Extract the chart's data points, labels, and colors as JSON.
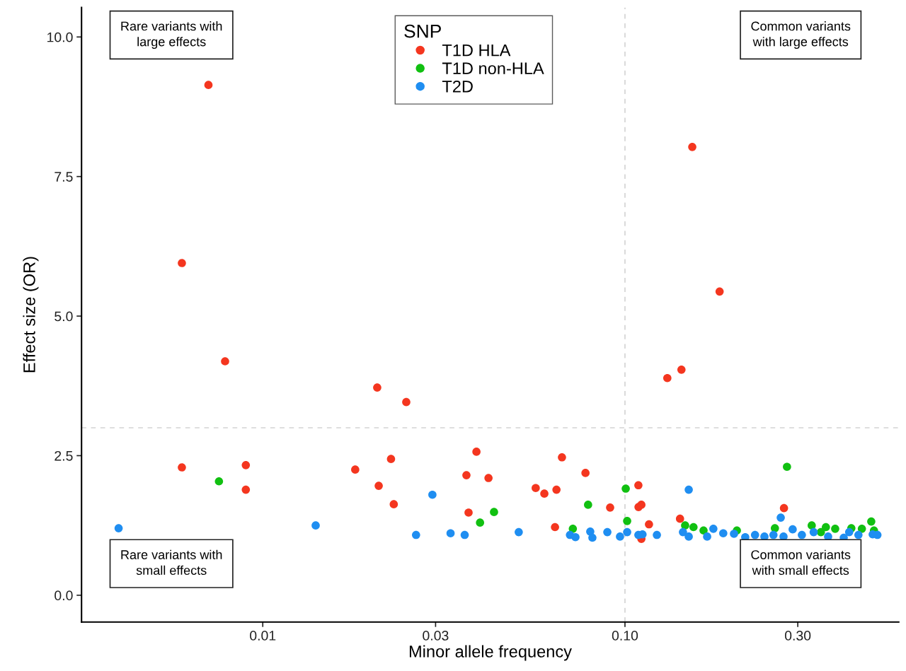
{
  "chart_data": {
    "type": "scatter",
    "xlabel": "Minor allele frequency",
    "ylabel": "Effect size (OR)",
    "legend_title": "SNP",
    "legend": "top",
    "marker": "circle",
    "grid": false,
    "log": "x",
    "xlim": [
      0.00316,
      0.57
    ],
    "xticks": [
      0.01,
      0.03,
      {
        "value": 0.1,
        "label": "0.10"
      },
      {
        "value": 0.3,
        "label": "0.30"
      }
    ],
    "ylim": [
      -0.48,
      10.53
    ],
    "yticks": [
      {
        "value": 0,
        "label": "0.0"
      },
      2.5,
      {
        "value": 5,
        "label": "5.0"
      },
      7.5,
      {
        "value": 10,
        "label": "10.0"
      }
    ],
    "ref_lines": [
      {
        "axis": "x",
        "value": 0.1,
        "color": "#d3d3d3",
        "line_style": "dashed"
      },
      {
        "axis": "y",
        "value": 3.0,
        "color": "#d3d3d3",
        "line_style": "dashed"
      }
    ],
    "annotations": [
      "Rare variants with\nlarge effects",
      "Common variants\nwith large effects",
      "Rare variants with\nsmall effects",
      "Common variants\nwith small effects"
    ],
    "series": [
      {
        "name": "T1D HLA",
        "color": "#f4361f",
        "x": [
          0.00708,
          0.00598,
          0.00787,
          0.00598,
          0.00898,
          0.00898,
          0.018,
          0.0209,
          0.0207,
          0.0249,
          0.0226,
          0.023,
          0.0389,
          0.0365,
          0.042,
          0.037,
          0.067,
          0.0778,
          0.0567,
          0.0599,
          0.0647,
          0.091,
          0.0641,
          0.1089,
          0.109,
          0.111,
          0.1165,
          0.111,
          0.1419,
          0.2748,
          0.1309,
          0.1432,
          0.1534,
          0.1825
        ],
        "values": [
          9.14,
          5.95,
          4.19,
          2.29,
          2.33,
          1.89,
          2.25,
          1.96,
          3.72,
          3.46,
          2.44,
          1.63,
          2.57,
          2.15,
          2.1,
          1.48,
          2.47,
          2.19,
          1.92,
          1.82,
          1.89,
          1.57,
          1.22,
          1.97,
          1.58,
          1.62,
          1.27,
          1.01,
          1.37,
          1.56,
          3.89,
          4.04,
          8.03,
          5.44
        ]
      },
      {
        "name": "T1D non-HLA",
        "color": "#11c011",
        "x": [
          0.00757,
          0.0398,
          0.0435,
          0.0718,
          0.0791,
          0.1005,
          0.1014,
          0.2801,
          0.1466,
          0.1546,
          0.1648,
          0.2037,
          0.2594,
          0.3278,
          0.3587,
          0.3805,
          0.3475,
          0.4217,
          0.4509,
          0.4786,
          0.487
        ],
        "values": [
          2.04,
          1.3,
          1.49,
          1.19,
          1.62,
          1.91,
          1.33,
          2.3,
          1.25,
          1.22,
          1.16,
          1.16,
          1.2,
          1.25,
          1.22,
          1.19,
          1.13,
          1.2,
          1.19,
          1.32,
          1.16
        ]
      },
      {
        "name": "T2D",
        "color": "#1f8ef1",
        "x": [
          0.004,
          0.014,
          0.0294,
          0.0265,
          0.033,
          0.0361,
          0.0509,
          0.0705,
          0.073,
          0.0802,
          0.0813,
          0.0894,
          0.0969,
          0.1014,
          0.1089,
          0.1118,
          0.1225,
          0.15,
          0.1446,
          0.15,
          0.1686,
          0.1754,
          0.1868,
          0.2,
          0.2148,
          0.2286,
          0.2427,
          0.257,
          0.2692,
          0.274,
          0.2904,
          0.3079,
          0.3319,
          0.3638,
          0.4018,
          0.4159,
          0.4411,
          0.483,
          0.4977
        ],
        "values": [
          1.2,
          1.25,
          1.8,
          1.08,
          1.11,
          1.08,
          1.13,
          1.08,
          1.04,
          1.14,
          1.03,
          1.13,
          1.05,
          1.13,
          1.08,
          1.09,
          1.08,
          1.89,
          1.13,
          1.05,
          1.05,
          1.19,
          1.11,
          1.1,
          1.04,
          1.08,
          1.05,
          1.08,
          1.39,
          1.05,
          1.18,
          1.08,
          1.13,
          1.05,
          1.03,
          1.13,
          1.08,
          1.09,
          1.08
        ]
      }
    ]
  }
}
